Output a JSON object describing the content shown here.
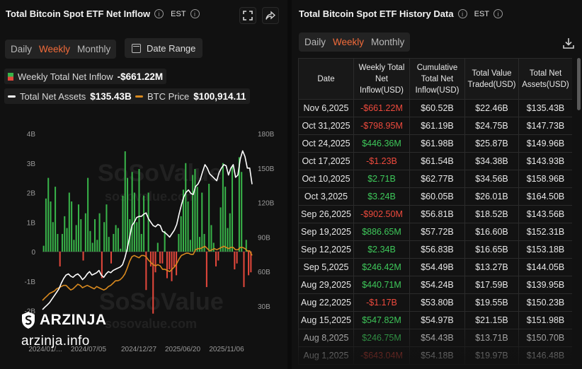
{
  "left": {
    "title": "Total Bitcoin Spot ETF Net Inflow",
    "timezone": "EST",
    "tabs": [
      {
        "label": "Daily"
      },
      {
        "label": "Weekly"
      },
      {
        "label": "Monthly"
      }
    ],
    "date_range_label": "Date Range",
    "legend": {
      "inflow_label": "Weekly Total Net Inflow",
      "inflow_value": "-$661.22M",
      "assets_label": "Total Net Assets",
      "assets_value": "$135.43B",
      "btc_label": "BTC Price",
      "btc_value": "$100,914.11"
    }
  },
  "right": {
    "title": "Total Bitcoin Spot ETF History Data",
    "timezone": "EST",
    "tabs": [
      {
        "label": "Daily"
      },
      {
        "label": "Weekly"
      },
      {
        "label": "Monthly"
      }
    ],
    "columns": [
      "Date",
      "Weekly Total Net Inflow(USD)",
      "Cumulative Total Net Inflow(USD)",
      "Total Value Traded(USD)",
      "Total Net Assets(USD)"
    ],
    "rows": [
      {
        "date": "Nov 6,2025",
        "inflow": "-$661.22M",
        "sign": "neg",
        "cum": "$60.52B",
        "traded": "$22.46B",
        "assets": "$135.43B"
      },
      {
        "date": "Oct 31,2025",
        "inflow": "-$798.95M",
        "sign": "neg",
        "cum": "$61.19B",
        "traded": "$24.75B",
        "assets": "$147.73B"
      },
      {
        "date": "Oct 24,2025",
        "inflow": "$446.36M",
        "sign": "pos",
        "cum": "$61.98B",
        "traded": "$25.87B",
        "assets": "$149.96B"
      },
      {
        "date": "Oct 17,2025",
        "inflow": "-$1.23B",
        "sign": "neg",
        "cum": "$61.54B",
        "traded": "$34.38B",
        "assets": "$143.93B"
      },
      {
        "date": "Oct 10,2025",
        "inflow": "$2.71B",
        "sign": "pos",
        "cum": "$62.77B",
        "traded": "$34.56B",
        "assets": "$158.96B"
      },
      {
        "date": "Oct 3,2025",
        "inflow": "$3.24B",
        "sign": "pos",
        "cum": "$60.05B",
        "traded": "$26.01B",
        "assets": "$164.50B"
      },
      {
        "date": "Sep 26,2025",
        "inflow": "-$902.50M",
        "sign": "neg",
        "cum": "$56.81B",
        "traded": "$18.52B",
        "assets": "$143.56B"
      },
      {
        "date": "Sep 19,2025",
        "inflow": "$886.65M",
        "sign": "pos",
        "cum": "$57.72B",
        "traded": "$16.60B",
        "assets": "$152.31B"
      },
      {
        "date": "Sep 12,2025",
        "inflow": "$2.34B",
        "sign": "pos",
        "cum": "$56.83B",
        "traded": "$16.65B",
        "assets": "$153.18B"
      },
      {
        "date": "Sep 5,2025",
        "inflow": "$246.42M",
        "sign": "pos",
        "cum": "$54.49B",
        "traded": "$13.27B",
        "assets": "$144.05B"
      },
      {
        "date": "Aug 29,2025",
        "inflow": "$440.71M",
        "sign": "pos",
        "cum": "$54.24B",
        "traded": "$17.59B",
        "assets": "$139.95B"
      },
      {
        "date": "Aug 22,2025",
        "inflow": "-$1.17B",
        "sign": "neg",
        "cum": "$53.80B",
        "traded": "$19.55B",
        "assets": "$150.23B"
      },
      {
        "date": "Aug 15,2025",
        "inflow": "$547.82M",
        "sign": "pos",
        "cum": "$54.97B",
        "traded": "$21.15B",
        "assets": "$151.98B"
      },
      {
        "date": "Aug 8,2025",
        "inflow": "$246.75M",
        "sign": "pos",
        "cum": "$54.43B",
        "traded": "$13.71B",
        "assets": "$150.70B"
      },
      {
        "date": "Aug 1,2025",
        "inflow": "-$643.04M",
        "sign": "neg",
        "cum": "$54.18B",
        "traded": "$19.97B",
        "assets": "$146.48B"
      }
    ]
  },
  "watermark": {
    "brand": "SoSoValue",
    "url": "sosovalue.com"
  },
  "overlay": {
    "brand": "ARZINJA",
    "url": "arzinja.info"
  },
  "colors": {
    "accent": "#f26b3a",
    "positive": "#38b349",
    "negative": "#e2473b",
    "btc_line": "#d98a1f",
    "assets_line": "#ffffff"
  },
  "chart_data": {
    "type": "bar",
    "title": "Total Bitcoin Spot ETF Net Inflow",
    "y_left_ticks": [
      "4B",
      "3B",
      "2B",
      "1B",
      "0",
      "-1B",
      "-2B"
    ],
    "y_left_range": [
      -2,
      4
    ],
    "y_right_ticks": [
      "180B",
      "150B",
      "120B",
      "90B",
      "60B",
      "30B"
    ],
    "y_right_range": [
      20,
      180
    ],
    "x_ticks": [
      "2024/01/...",
      "2024/07/05",
      "2024/12/27",
      "2025/06/20",
      "2025/11/06"
    ],
    "series": [
      {
        "name": "Weekly Total Net Inflow",
        "type": "bar",
        "values": [
          0.2,
          1.8,
          2.5,
          1.7,
          1.0,
          2.2,
          0.6,
          -0.5,
          0.6,
          1.2,
          0.8,
          2.0,
          1.7,
          0.4,
          0.9,
          1.6,
          1.1,
          -0.3,
          1.3,
          2.5,
          0.7,
          0.3,
          1.1,
          0.4,
          1.3,
          -0.9,
          1.0,
          1.6,
          0.5,
          -0.4,
          0.6,
          0.9,
          0.8,
          0.1,
          1.9,
          3.4,
          2.5,
          1.1,
          2.7,
          2.0,
          1.0,
          2.8,
          0.6,
          1.9,
          -1.3,
          2.0,
          -0.5,
          -2.1,
          -0.7,
          0.3,
          -0.4,
          -0.4,
          0.7,
          -0.9,
          -0.6,
          -1.0,
          -0.5,
          -0.8,
          0.6,
          1.2,
          2.1,
          3.0,
          1.7,
          0.4,
          2.6,
          2.8,
          2.2,
          0.5,
          2.0,
          0.6,
          -1.2,
          2.3,
          0.9,
          0.3,
          -0.5,
          -0.3,
          1.5,
          3.0,
          2.2,
          0.8,
          1.3,
          2.9,
          -0.6,
          -0.4,
          3.2,
          2.7,
          -1.2,
          0.4,
          -0.8,
          -0.7
        ]
      },
      {
        "name": "Total Net Assets",
        "type": "line",
        "values": [
          27,
          29,
          31,
          33,
          36,
          39,
          42,
          45,
          50,
          54,
          57,
          58,
          56,
          55,
          57,
          58,
          56,
          53,
          55,
          58,
          60,
          57,
          58,
          59,
          61,
          57,
          55,
          58,
          60,
          59,
          61,
          62,
          63,
          64,
          66,
          72,
          80,
          90,
          100,
          103,
          107,
          108,
          108,
          110,
          111,
          106,
          103,
          100,
          99,
          101,
          100,
          95,
          94,
          92,
          90,
          93,
          96,
          101,
          110,
          118,
          125,
          129,
          131,
          128,
          127,
          134,
          136,
          140,
          147,
          153,
          150,
          145,
          143,
          141,
          139,
          146,
          150,
          153,
          152,
          144,
          150,
          153,
          142,
          144,
          158,
          165,
          160,
          150,
          150,
          136
        ]
      },
      {
        "name": "BTC Price",
        "type": "line",
        "values": [
          35,
          37,
          39,
          41,
          42,
          43,
          45,
          46,
          47,
          48,
          48,
          46,
          44,
          45,
          47,
          49,
          48,
          46,
          47,
          48,
          47,
          46,
          45,
          47,
          46,
          45,
          44,
          45,
          47,
          48,
          50,
          52,
          52,
          53,
          55,
          58,
          63,
          69,
          73,
          74,
          73,
          72,
          74,
          74,
          73,
          70,
          68,
          66,
          65,
          66,
          65,
          62,
          62,
          61,
          60,
          62,
          64,
          67,
          71,
          74,
          75,
          76,
          76,
          75,
          75,
          79,
          80,
          80,
          81,
          82,
          80,
          78,
          79,
          80,
          79,
          80,
          81,
          82,
          81,
          80,
          81,
          81,
          79,
          79,
          81,
          81,
          80,
          78,
          78,
          74
        ]
      }
    ]
  }
}
